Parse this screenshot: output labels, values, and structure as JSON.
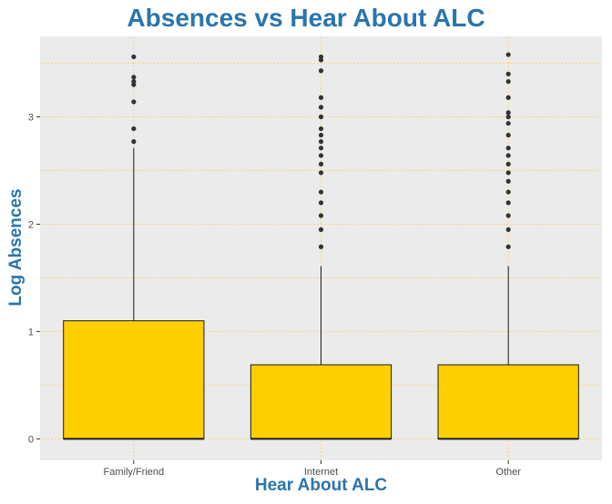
{
  "colors": {
    "title": "#2a75ae",
    "panel_background": "#ebebeb",
    "grid": "#ffd27a",
    "box_fill": "#ffd000",
    "box_stroke": "#1a1a1a",
    "outlier": "#333333",
    "tick_text": "#4d4d4d"
  },
  "chart_data": {
    "type": "boxplot",
    "title": "Absences vs Hear About ALC",
    "xlabel": "Hear About ALC",
    "ylabel": "Log Absences",
    "categories": [
      "Family/Friend",
      "Internet",
      "Other"
    ],
    "ylim": [
      -0.2,
      3.75
    ],
    "yticks": [
      0,
      1,
      2,
      3
    ],
    "grid": true,
    "legend": "none",
    "boxes": [
      {
        "category": "Family/Friend",
        "whisker_low": 0,
        "q1": 0,
        "median": 0,
        "q3": 1.1,
        "whisker_high": 2.71,
        "outliers": [
          2.77,
          2.89,
          3.14,
          3.3,
          3.33,
          3.37,
          3.56
        ]
      },
      {
        "category": "Internet",
        "whisker_low": 0,
        "q1": 0,
        "median": 0,
        "q3": 0.69,
        "whisker_high": 1.61,
        "outliers": [
          1.79,
          1.95,
          2.08,
          2.2,
          2.3,
          2.48,
          2.56,
          2.64,
          2.71,
          2.77,
          2.83,
          2.89,
          3.0,
          3.09,
          3.18,
          3.43,
          3.53,
          3.56
        ]
      },
      {
        "category": "Other",
        "whisker_low": 0,
        "q1": 0,
        "median": 0,
        "q3": 0.69,
        "whisker_high": 1.61,
        "outliers": [
          1.79,
          1.95,
          2.08,
          2.2,
          2.3,
          2.4,
          2.48,
          2.56,
          2.64,
          2.71,
          2.83,
          2.94,
          3.0,
          3.04,
          3.18,
          3.33,
          3.4,
          3.58
        ]
      }
    ]
  }
}
